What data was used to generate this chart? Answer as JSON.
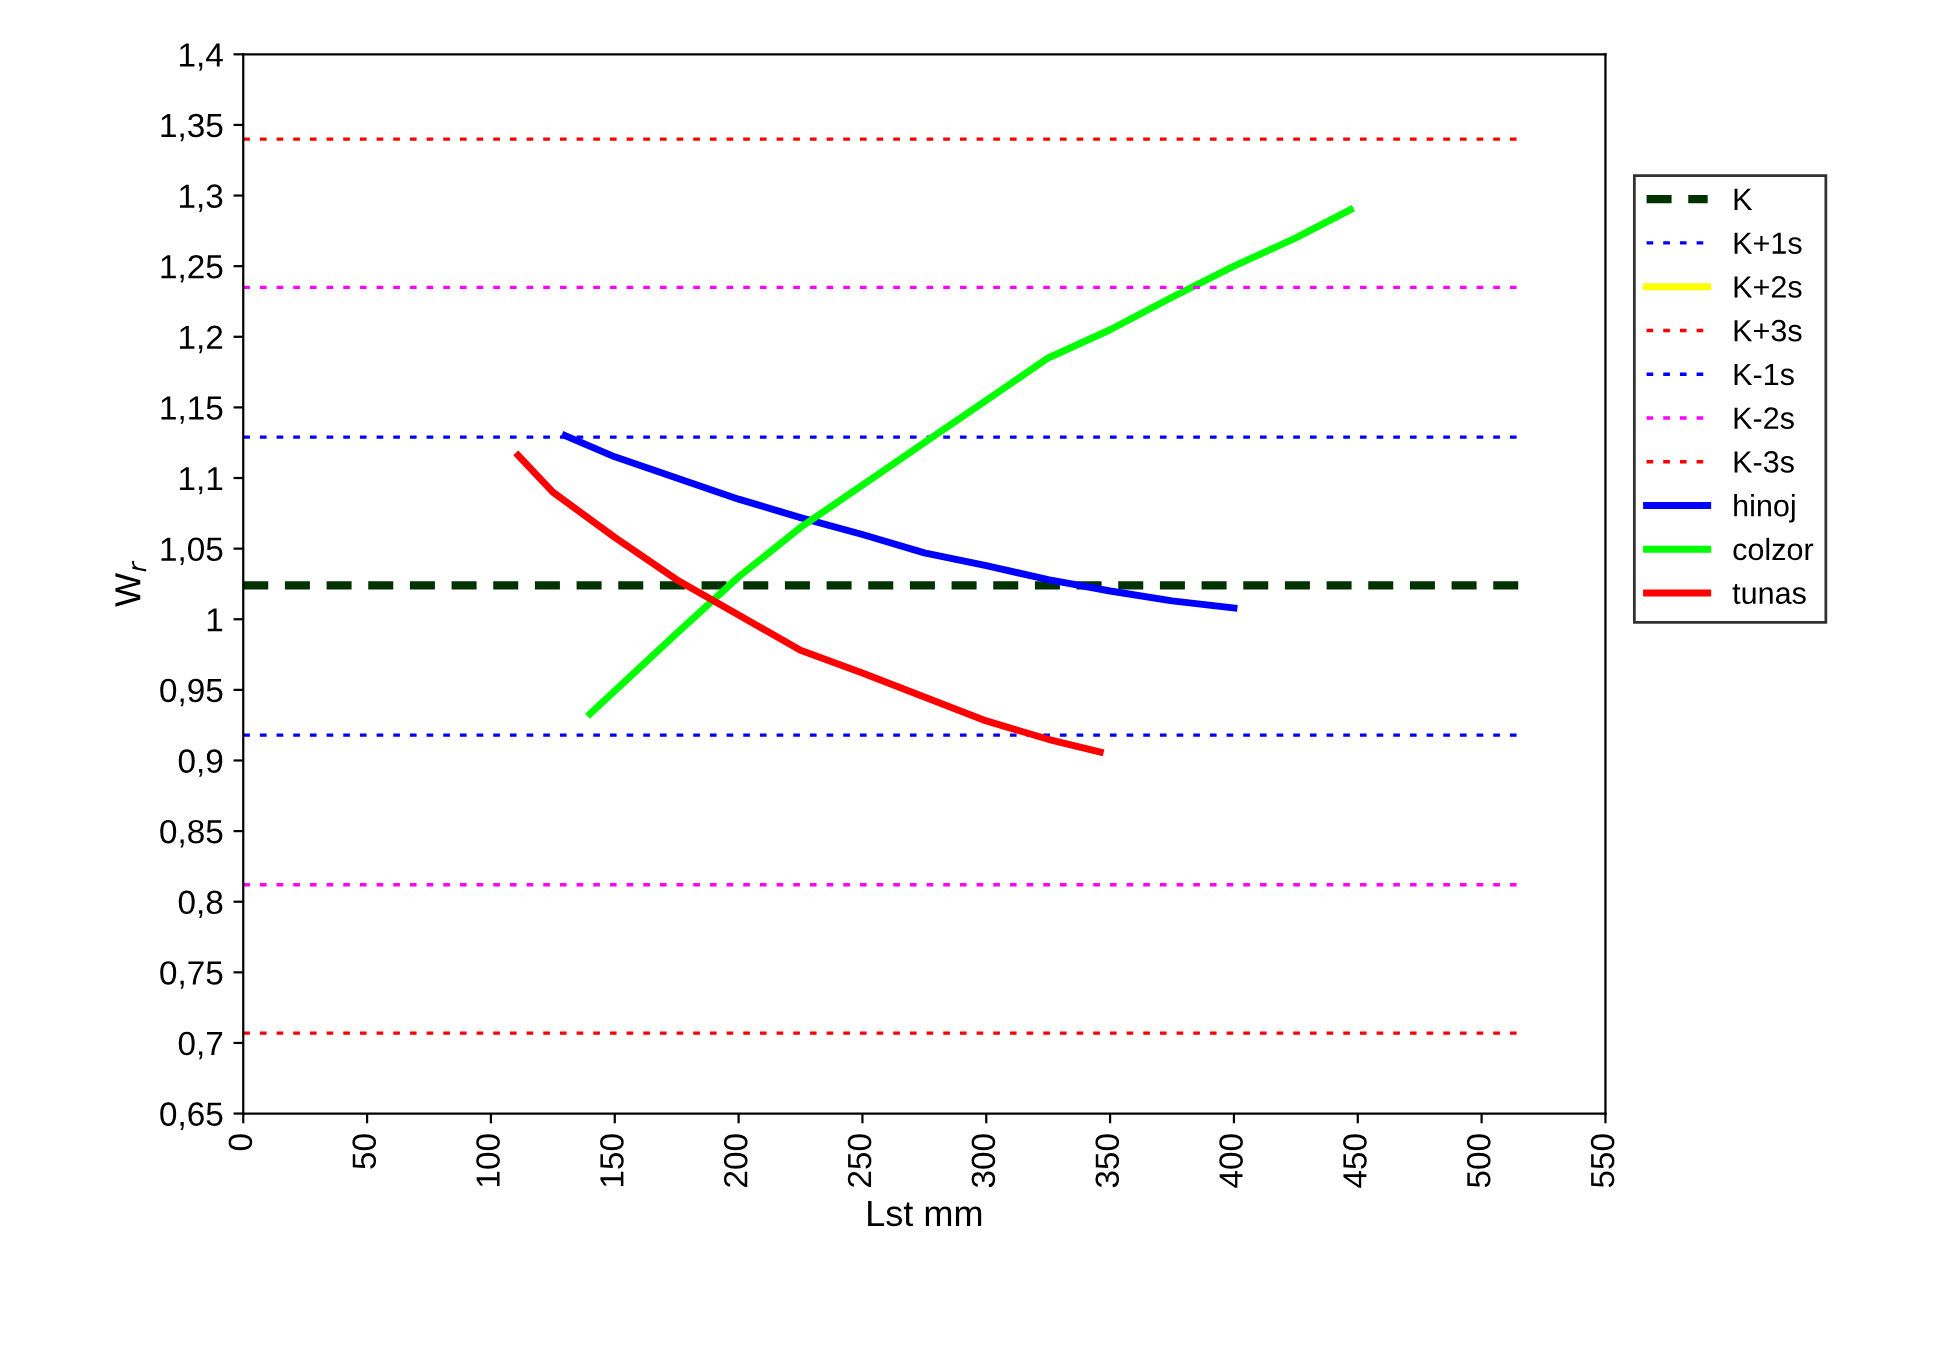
{
  "chart_data": {
    "type": "line",
    "xlabel": "Lst mm",
    "ylabel": "W$_{r}$",
    "xlim": [
      0,
      550
    ],
    "ylim": [
      0.65,
      1.4
    ],
    "xticks": [
      0,
      50,
      100,
      150,
      200,
      250,
      300,
      350,
      400,
      450,
      500,
      550
    ],
    "yticks": [
      {
        "value": 0.65,
        "label": "0,65"
      },
      {
        "value": 0.7,
        "label": "0,7"
      },
      {
        "value": 0.75,
        "label": "0,75"
      },
      {
        "value": 0.8,
        "label": "0,8"
      },
      {
        "value": 0.85,
        "label": "0,85"
      },
      {
        "value": 0.9,
        "label": "0,9"
      },
      {
        "value": 0.95,
        "label": "0,95"
      },
      {
        "value": 1.0,
        "label": "1"
      },
      {
        "value": 1.05,
        "label": "1,05"
      },
      {
        "value": 1.1,
        "label": "1,1"
      },
      {
        "value": 1.15,
        "label": "1,15"
      },
      {
        "value": 1.2,
        "label": "1,2"
      },
      {
        "value": 1.25,
        "label": "1,25"
      },
      {
        "value": 1.3,
        "label": "1,3"
      },
      {
        "value": 1.35,
        "label": "1,35"
      },
      {
        "value": 1.4,
        "label": "1,4"
      }
    ],
    "grid": false,
    "legend": "right",
    "marker": "none",
    "series": [
      {
        "name": "K",
        "color": "#003300",
        "line_style": "dashed",
        "x": [
          0,
          515
        ],
        "values": [
          1.024,
          1.024
        ]
      },
      {
        "name": "K+1s",
        "color": "#0000ff",
        "line_style": "dotted",
        "x": [
          0,
          515
        ],
        "values": [
          1.129,
          1.129
        ]
      },
      {
        "name": "K+2s",
        "color": "#ffff00",
        "line_style": "solid"
      },
      {
        "name": "K+3s",
        "color": "#ff0000",
        "line_style": "dotted",
        "x": [
          0,
          515
        ],
        "values": [
          1.34,
          1.34
        ]
      },
      {
        "name": "K-1s",
        "color": "#0000ff",
        "line_style": "dotted",
        "x": [
          0,
          515
        ],
        "values": [
          0.918,
          0.918
        ]
      },
      {
        "name": "K-2s",
        "color": "#ff00ff",
        "line_style": "dotted",
        "x": [
          0,
          515
        ],
        "values": [
          0.812,
          0.812
        ]
      },
      {
        "name": "K-3s",
        "color": "#ff0000",
        "line_style": "dotted",
        "x": [
          0,
          515
        ],
        "values": [
          0.707,
          0.707
        ]
      },
      {
        "name": "hinoj",
        "color": "#0000ff",
        "line_style": "solid",
        "x": [
          130,
          150,
          175,
          200,
          225,
          250,
          275,
          300,
          325,
          350,
          375,
          400
        ],
        "values": [
          1.13,
          1.115,
          1.1,
          1.085,
          1.072,
          1.06,
          1.047,
          1.038,
          1.028,
          1.02,
          1.013,
          1.008
        ]
      },
      {
        "name": "colzor",
        "color": "#00ff00",
        "line_style": "solid",
        "x": [
          140,
          175,
          200,
          225,
          250,
          275,
          300,
          325,
          350,
          375,
          400,
          425,
          447
        ],
        "values": [
          0.933,
          0.99,
          1.03,
          1.065,
          1.095,
          1.125,
          1.155,
          1.185,
          1.205,
          1.228,
          1.25,
          1.27,
          1.29
        ]
      },
      {
        "name": "tunas",
        "color": "#ff0000",
        "line_style": "solid",
        "x": [
          111,
          125,
          150,
          175,
          200,
          225,
          250,
          275,
          300,
          325,
          346
        ],
        "values": [
          1.116,
          1.09,
          1.058,
          1.028,
          1.003,
          0.978,
          0.962,
          0.945,
          0.928,
          0.915,
          0.906
        ]
      },
      {
        "color": "#ff00ff",
        "line_style": "dotted",
        "x": [
          0,
          515
        ],
        "values": [
          1.235,
          1.235
        ]
      }
    ]
  }
}
